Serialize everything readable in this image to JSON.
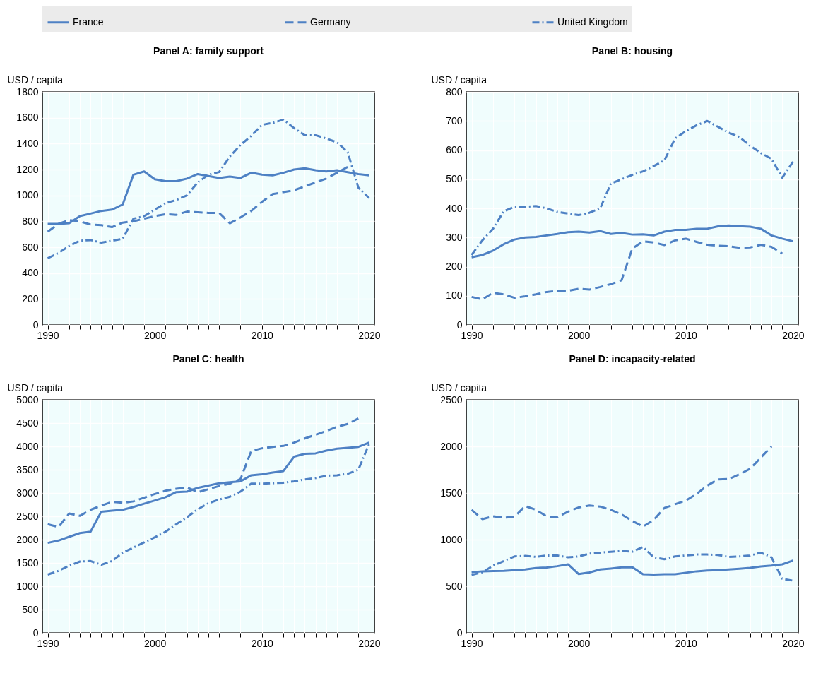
{
  "chart_data": [
    {
      "type": "line",
      "title": "Panel A: family support",
      "ylabel": "USD / capita",
      "legend": "top",
      "grid": true,
      "x": [
        1990,
        1991,
        1992,
        1993,
        1994,
        1995,
        1996,
        1997,
        1998,
        1999,
        2000,
        2001,
        2002,
        2003,
        2004,
        2005,
        2006,
        2007,
        2008,
        2009,
        2010,
        2011,
        2012,
        2013,
        2014,
        2015,
        2016,
        2017,
        2018,
        2019,
        2020
      ],
      "xlim": [
        1989.5,
        2020.5
      ],
      "xticks": [
        1990,
        {
          "value": 1991,
          "label": null
        },
        {
          "value": 1992,
          "label": null
        },
        {
          "value": 1993,
          "label": null
        },
        {
          "value": 1994,
          "label": null
        },
        {
          "value": 1995,
          "label": null
        },
        {
          "value": 1996,
          "label": null
        },
        {
          "value": 1997,
          "label": null
        },
        {
          "value": 1998,
          "label": null
        },
        {
          "value": 1999,
          "label": null
        },
        2000,
        {
          "value": 2001,
          "label": null
        },
        {
          "value": 2002,
          "label": null
        },
        {
          "value": 2003,
          "label": null
        },
        {
          "value": 2004,
          "label": null
        },
        {
          "value": 2005,
          "label": null
        },
        {
          "value": 2006,
          "label": null
        },
        {
          "value": 2007,
          "label": null
        },
        {
          "value": 2008,
          "label": null
        },
        {
          "value": 2009,
          "label": null
        },
        2010,
        {
          "value": 2011,
          "label": null
        },
        {
          "value": 2012,
          "label": null
        },
        {
          "value": 2013,
          "label": null
        },
        {
          "value": 2014,
          "label": null
        },
        {
          "value": 2015,
          "label": null
        },
        {
          "value": 2016,
          "label": null
        },
        {
          "value": 2017,
          "label": null
        },
        {
          "value": 2018,
          "label": null
        },
        {
          "value": 2019,
          "label": null
        },
        2020
      ],
      "ylim": [
        0,
        1800
      ],
      "yticks": [
        0,
        200,
        400,
        600,
        800,
        1000,
        1200,
        1400,
        1600,
        1800
      ],
      "series": [
        {
          "name": "France",
          "color": "#4e81c4",
          "line_style": "solid",
          "values": [
            780,
            780,
            785,
            840,
            860,
            880,
            890,
            930,
            1160,
            1185,
            1125,
            1110,
            1110,
            1130,
            1165,
            1150,
            1135,
            1145,
            1135,
            1175,
            1160,
            1155,
            1175,
            1200,
            1210,
            1195,
            1185,
            1195,
            1180,
            1165,
            1155
          ]
        },
        {
          "name": "Germany",
          "color": "#4e81c4",
          "line_style": "dashed",
          "values": [
            720,
            780,
            810,
            800,
            775,
            770,
            755,
            790,
            800,
            820,
            840,
            855,
            850,
            875,
            870,
            865,
            865,
            785,
            830,
            880,
            950,
            1010,
            1025,
            1040,
            1070,
            1100,
            1130,
            1175,
            1220,
            null,
            null
          ]
        },
        {
          "name": "United Kingdom",
          "color": "#4e81c4",
          "line_style": "dashdot",
          "values": [
            515,
            555,
            610,
            650,
            655,
            635,
            650,
            665,
            820,
            840,
            890,
            940,
            965,
            1000,
            1100,
            1160,
            1180,
            1300,
            1390,
            1460,
            1545,
            1560,
            1585,
            1520,
            1465,
            1465,
            1440,
            1410,
            1335,
            1060,
            980
          ]
        }
      ]
    },
    {
      "type": "line",
      "title": "Panel B: housing",
      "ylabel": "USD / capita",
      "legend": "top",
      "grid": true,
      "x": [
        1990,
        1991,
        1992,
        1993,
        1994,
        1995,
        1996,
        1997,
        1998,
        1999,
        2000,
        2001,
        2002,
        2003,
        2004,
        2005,
        2006,
        2007,
        2008,
        2009,
        2010,
        2011,
        2012,
        2013,
        2014,
        2015,
        2016,
        2017,
        2018,
        2019,
        2020
      ],
      "xlim": [
        1989.5,
        2020.5
      ],
      "xticks": [
        1990,
        {
          "value": 1991,
          "label": null
        },
        {
          "value": 1992,
          "label": null
        },
        {
          "value": 1993,
          "label": null
        },
        {
          "value": 1994,
          "label": null
        },
        {
          "value": 1995,
          "label": null
        },
        {
          "value": 1996,
          "label": null
        },
        {
          "value": 1997,
          "label": null
        },
        {
          "value": 1998,
          "label": null
        },
        {
          "value": 1999,
          "label": null
        },
        2000,
        {
          "value": 2001,
          "label": null
        },
        {
          "value": 2002,
          "label": null
        },
        {
          "value": 2003,
          "label": null
        },
        {
          "value": 2004,
          "label": null
        },
        {
          "value": 2005,
          "label": null
        },
        {
          "value": 2006,
          "label": null
        },
        {
          "value": 2007,
          "label": null
        },
        {
          "value": 2008,
          "label": null
        },
        {
          "value": 2009,
          "label": null
        },
        2010,
        {
          "value": 2011,
          "label": null
        },
        {
          "value": 2012,
          "label": null
        },
        {
          "value": 2013,
          "label": null
        },
        {
          "value": 2014,
          "label": null
        },
        {
          "value": 2015,
          "label": null
        },
        {
          "value": 2016,
          "label": null
        },
        {
          "value": 2017,
          "label": null
        },
        {
          "value": 2018,
          "label": null
        },
        {
          "value": 2019,
          "label": null
        },
        2020
      ],
      "ylim": [
        0,
        800
      ],
      "yticks": [
        0,
        100,
        200,
        300,
        400,
        500,
        600,
        700,
        800
      ],
      "series": [
        {
          "name": "France",
          "color": "#4e81c4",
          "line_style": "solid",
          "values": [
            232,
            240,
            255,
            277,
            293,
            300,
            302,
            307,
            312,
            318,
            320,
            317,
            322,
            312,
            316,
            310,
            311,
            307,
            320,
            326,
            326,
            330,
            330,
            338,
            341,
            339,
            337,
            330,
            307,
            296,
            287
          ]
        },
        {
          "name": "Germany",
          "color": "#4e81c4",
          "line_style": "dashed",
          "values": [
            96,
            88,
            110,
            105,
            93,
            98,
            105,
            113,
            117,
            117,
            124,
            121,
            130,
            140,
            153,
            262,
            287,
            283,
            274,
            290,
            296,
            285,
            275,
            272,
            270,
            265,
            266,
            275,
            268,
            245,
            null
          ]
        },
        {
          "name": "United Kingdom",
          "color": "#4e81c4",
          "line_style": "dashdot",
          "values": [
            240,
            290,
            330,
            390,
            405,
            405,
            408,
            400,
            388,
            382,
            377,
            385,
            400,
            485,
            500,
            515,
            527,
            545,
            565,
            640,
            665,
            685,
            700,
            680,
            660,
            645,
            615,
            590,
            570,
            505,
            560
          ]
        }
      ]
    },
    {
      "type": "line",
      "title": "Panel C: health",
      "ylabel": "USD / capita",
      "legend": "top",
      "grid": true,
      "x": [
        1990,
        1991,
        1992,
        1993,
        1994,
        1995,
        1996,
        1997,
        1998,
        1999,
        2000,
        2001,
        2002,
        2003,
        2004,
        2005,
        2006,
        2007,
        2008,
        2009,
        2010,
        2011,
        2012,
        2013,
        2014,
        2015,
        2016,
        2017,
        2018,
        2019,
        2020
      ],
      "xlim": [
        1989.5,
        2020.5
      ],
      "xticks": [
        1990,
        {
          "value": 1991,
          "label": null
        },
        {
          "value": 1992,
          "label": null
        },
        {
          "value": 1993,
          "label": null
        },
        {
          "value": 1994,
          "label": null
        },
        {
          "value": 1995,
          "label": null
        },
        {
          "value": 1996,
          "label": null
        },
        {
          "value": 1997,
          "label": null
        },
        {
          "value": 1998,
          "label": null
        },
        {
          "value": 1999,
          "label": null
        },
        2000,
        {
          "value": 2001,
          "label": null
        },
        {
          "value": 2002,
          "label": null
        },
        {
          "value": 2003,
          "label": null
        },
        {
          "value": 2004,
          "label": null
        },
        {
          "value": 2005,
          "label": null
        },
        {
          "value": 2006,
          "label": null
        },
        {
          "value": 2007,
          "label": null
        },
        {
          "value": 2008,
          "label": null
        },
        {
          "value": 2009,
          "label": null
        },
        2010,
        {
          "value": 2011,
          "label": null
        },
        {
          "value": 2012,
          "label": null
        },
        {
          "value": 2013,
          "label": null
        },
        {
          "value": 2014,
          "label": null
        },
        {
          "value": 2015,
          "label": null
        },
        {
          "value": 2016,
          "label": null
        },
        {
          "value": 2017,
          "label": null
        },
        {
          "value": 2018,
          "label": null
        },
        {
          "value": 2019,
          "label": null
        },
        2020
      ],
      "ylim": [
        0,
        5000
      ],
      "yticks": [
        0,
        500,
        1000,
        1500,
        2000,
        2500,
        3000,
        3500,
        4000,
        4500,
        5000
      ],
      "series": [
        {
          "name": "France",
          "color": "#4e81c4",
          "line_style": "solid",
          "values": [
            1930,
            1980,
            2060,
            2140,
            2170,
            2600,
            2620,
            2640,
            2700,
            2770,
            2840,
            2910,
            3020,
            3030,
            3110,
            3160,
            3210,
            3230,
            3250,
            3380,
            3400,
            3440,
            3470,
            3780,
            3840,
            3850,
            3910,
            3950,
            3970,
            3990,
            4080
          ]
        },
        {
          "name": "Germany",
          "color": "#4e81c4",
          "line_style": "dashed",
          "values": [
            2330,
            2270,
            2560,
            2510,
            2640,
            2730,
            2810,
            2790,
            2820,
            2900,
            2980,
            3050,
            3090,
            3120,
            3020,
            3080,
            3150,
            3200,
            3300,
            3900,
            3960,
            3990,
            4010,
            4080,
            4170,
            4250,
            4330,
            4420,
            4480,
            4600,
            null
          ]
        },
        {
          "name": "United Kingdom",
          "color": "#4e81c4",
          "line_style": "dashdot",
          "values": [
            1250,
            1330,
            1440,
            1530,
            1540,
            1460,
            1540,
            1720,
            1830,
            1940,
            2050,
            2170,
            2330,
            2480,
            2650,
            2780,
            2860,
            2920,
            3030,
            3200,
            3200,
            3210,
            3220,
            3250,
            3290,
            3320,
            3370,
            3380,
            3410,
            3500,
            4050
          ]
        }
      ]
    },
    {
      "type": "line",
      "title": "Panel D: incapacity-related",
      "ylabel": "USD / capita",
      "legend": "top",
      "grid": true,
      "x": [
        1990,
        1991,
        1992,
        1993,
        1994,
        1995,
        1996,
        1997,
        1998,
        1999,
        2000,
        2001,
        2002,
        2003,
        2004,
        2005,
        2006,
        2007,
        2008,
        2009,
        2010,
        2011,
        2012,
        2013,
        2014,
        2015,
        2016,
        2017,
        2018,
        2019,
        2020
      ],
      "xlim": [
        1989.5,
        2020.5
      ],
      "xticks": [
        1990,
        {
          "value": 1991,
          "label": null
        },
        {
          "value": 1992,
          "label": null
        },
        {
          "value": 1993,
          "label": null
        },
        {
          "value": 1994,
          "label": null
        },
        {
          "value": 1995,
          "label": null
        },
        {
          "value": 1996,
          "label": null
        },
        {
          "value": 1997,
          "label": null
        },
        {
          "value": 1998,
          "label": null
        },
        {
          "value": 1999,
          "label": null
        },
        2000,
        {
          "value": 2001,
          "label": null
        },
        {
          "value": 2002,
          "label": null
        },
        {
          "value": 2003,
          "label": null
        },
        {
          "value": 2004,
          "label": null
        },
        {
          "value": 2005,
          "label": null
        },
        {
          "value": 2006,
          "label": null
        },
        {
          "value": 2007,
          "label": null
        },
        {
          "value": 2008,
          "label": null
        },
        {
          "value": 2009,
          "label": null
        },
        2010,
        {
          "value": 2011,
          "label": null
        },
        {
          "value": 2012,
          "label": null
        },
        {
          "value": 2013,
          "label": null
        },
        {
          "value": 2014,
          "label": null
        },
        {
          "value": 2015,
          "label": null
        },
        {
          "value": 2016,
          "label": null
        },
        {
          "value": 2017,
          "label": null
        },
        {
          "value": 2018,
          "label": null
        },
        {
          "value": 2019,
          "label": null
        },
        2020
      ],
      "ylim": [
        0,
        2500
      ],
      "yticks": [
        0,
        500,
        1000,
        1500,
        2000,
        2500
      ],
      "series": [
        {
          "name": "France",
          "color": "#4e81c4",
          "line_style": "solid",
          "values": [
            650,
            660,
            662,
            665,
            672,
            680,
            695,
            700,
            715,
            735,
            630,
            648,
            680,
            690,
            702,
            705,
            628,
            625,
            628,
            628,
            645,
            660,
            668,
            672,
            680,
            688,
            697,
            712,
            722,
            735,
            775
          ]
        },
        {
          "name": "Germany",
          "color": "#4e81c4",
          "line_style": "dashed",
          "values": [
            1320,
            1220,
            1250,
            1235,
            1245,
            1360,
            1320,
            1250,
            1240,
            1300,
            1345,
            1365,
            1355,
            1320,
            1270,
            1200,
            1140,
            1210,
            1340,
            1380,
            1420,
            1490,
            1580,
            1645,
            1650,
            1700,
            1760,
            1880,
            2000,
            null,
            null
          ]
        },
        {
          "name": "United Kingdom",
          "color": "#4e81c4",
          "line_style": "dashdot",
          "values": [
            620,
            650,
            720,
            770,
            820,
            825,
            815,
            830,
            830,
            810,
            820,
            850,
            860,
            870,
            880,
            870,
            920,
            810,
            790,
            820,
            830,
            840,
            840,
            835,
            815,
            820,
            830,
            860,
            810,
            580,
            560
          ]
        }
      ]
    }
  ]
}
